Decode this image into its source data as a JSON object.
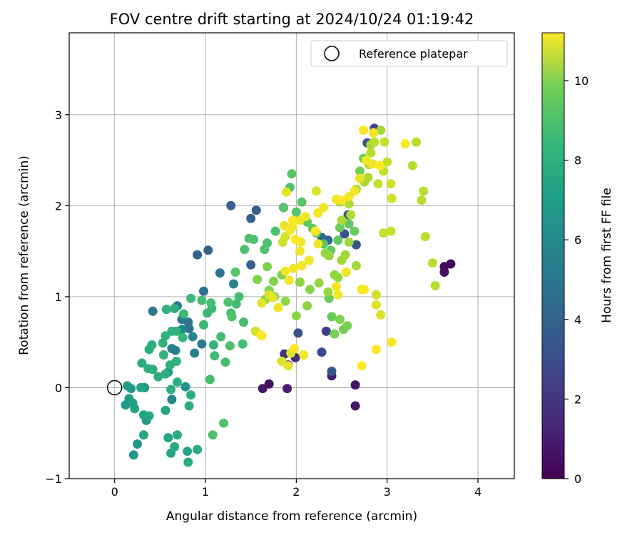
{
  "chart_data": {
    "type": "scatter",
    "title": "FOV centre drift starting at 2024/10/24 01:19:42",
    "xlabel": "Angular distance from reference (arcmin)",
    "ylabel": "Rotation from reference (arcmin)",
    "xlim": [
      -0.5,
      4.4
    ],
    "ylim": [
      -1.0,
      3.9
    ],
    "xticks": [
      0,
      1,
      2,
      3,
      4
    ],
    "yticks": [
      -1,
      0,
      1,
      2,
      3
    ],
    "xtick_labels": [
      "0",
      "1",
      "2",
      "3",
      "4"
    ],
    "ytick_labels": [
      "−1",
      "0",
      "1",
      "2",
      "3"
    ],
    "grid": true,
    "colormap": "viridis",
    "colorbar": {
      "label": "Hours from first FF file",
      "range": [
        0,
        11.2
      ],
      "ticks": [
        0,
        2,
        4,
        6,
        8,
        10
      ],
      "tick_labels": [
        "0",
        "2",
        "4",
        "6",
        "8",
        "10"
      ]
    },
    "legend": {
      "placement": "top-right",
      "entries": [
        {
          "label": "Reference platepar",
          "marker": "open-circle"
        }
      ]
    },
    "reference_point": {
      "x": 0,
      "y": 0
    },
    "points": [
      [
        3.7,
        1.36,
        0.2
      ],
      [
        3.63,
        1.33,
        0.3
      ],
      [
        3.63,
        1.27,
        0.4
      ],
      [
        2.65,
        0.03,
        0.6
      ],
      [
        2.65,
        -0.2,
        0.7
      ],
      [
        2.39,
        0.13,
        1.0
      ],
      [
        1.7,
        0.04,
        0.5
      ],
      [
        1.63,
        -0.01,
        0.7
      ],
      [
        1.9,
        -0.01,
        0.9
      ],
      [
        1.91,
        0.25,
        1.2
      ],
      [
        1.87,
        0.37,
        1.5
      ],
      [
        1.99,
        0.33,
        1.4
      ],
      [
        2.33,
        0.62,
        2.1
      ],
      [
        2.28,
        0.39,
        2.5
      ],
      [
        2.02,
        0.6,
        2.8
      ],
      [
        2.39,
        0.18,
        3.0
      ],
      [
        2.86,
        2.85,
        2.4
      ],
      [
        2.78,
        2.69,
        2.8
      ],
      [
        2.53,
        1.69,
        3.0
      ],
      [
        2.66,
        1.57,
        3.1
      ],
      [
        1.5,
        1.86,
        3.4
      ],
      [
        1.56,
        1.95,
        3.3
      ],
      [
        1.28,
        2.0,
        3.5
      ],
      [
        1.03,
        1.51,
        3.5
      ],
      [
        0.91,
        1.46,
        3.5
      ],
      [
        2.28,
        1.65,
        3.9
      ],
      [
        2.35,
        1.62,
        3.6
      ],
      [
        2.57,
        1.9,
        3.2
      ],
      [
        1.86,
        1.98,
        3.4
      ],
      [
        1.5,
        1.35,
        3.4
      ],
      [
        0.98,
        1.06,
        4.0
      ],
      [
        1.16,
        1.26,
        4.2
      ],
      [
        0.82,
        0.65,
        4.2
      ],
      [
        0.81,
        0.72,
        4.4
      ],
      [
        0.74,
        0.75,
        4.6
      ],
      [
        0.69,
        0.9,
        4.4
      ],
      [
        0.96,
        0.48,
        4.6
      ],
      [
        0.88,
        0.38,
        4.8
      ],
      [
        0.67,
        0.41,
        4.8
      ],
      [
        0.63,
        0.43,
        5.0
      ],
      [
        0.42,
        0.84,
        4.6
      ],
      [
        0.63,
        -0.13,
        5.2
      ],
      [
        0.74,
        0.64,
        5.2
      ],
      [
        0.86,
        0.56,
        5.2
      ],
      [
        1.31,
        1.14,
        5.0
      ],
      [
        0.78,
        0.01,
        5.6
      ],
      [
        0.59,
        0.17,
        5.8
      ],
      [
        0.21,
        -0.74,
        6.0
      ],
      [
        0.25,
        -0.62,
        6.0
      ],
      [
        0.35,
        -0.36,
        6.0
      ],
      [
        0.33,
        0.0,
        6.0
      ],
      [
        0.16,
        -0.12,
        6.2
      ],
      [
        0.12,
        -0.19,
        6.0
      ],
      [
        0.18,
        -0.01,
        6.0
      ],
      [
        0.14,
        0.02,
        6.2
      ],
      [
        0.2,
        -0.17,
        6.4
      ],
      [
        0.22,
        -0.23,
        6.4
      ],
      [
        0.29,
        0.0,
        6.4
      ],
      [
        0.32,
        -0.3,
        6.6
      ],
      [
        0.38,
        -0.31,
        6.6
      ],
      [
        0.32,
        -0.52,
        6.6
      ],
      [
        0.56,
        -0.25,
        6.6
      ],
      [
        0.59,
        -0.55,
        6.6
      ],
      [
        0.62,
        -0.72,
        6.6
      ],
      [
        0.66,
        -0.65,
        6.8
      ],
      [
        0.69,
        -0.52,
        6.8
      ],
      [
        0.8,
        -0.7,
        6.6
      ],
      [
        0.81,
        -0.82,
        6.8
      ],
      [
        0.91,
        -0.68,
        6.8
      ],
      [
        0.82,
        -0.2,
        6.8
      ],
      [
        0.84,
        -0.08,
        7.0
      ],
      [
        0.62,
        -0.02,
        7.0
      ],
      [
        0.69,
        0.06,
        7.0
      ],
      [
        0.3,
        0.27,
        6.8
      ],
      [
        0.37,
        0.21,
        7.0
      ],
      [
        0.42,
        0.2,
        7.0
      ],
      [
        0.48,
        0.12,
        7.0
      ],
      [
        0.56,
        0.15,
        7.0
      ],
      [
        0.61,
        0.25,
        7.2
      ],
      [
        0.68,
        0.29,
        7.2
      ],
      [
        0.54,
        0.36,
        7.2
      ],
      [
        0.38,
        0.42,
        7.0
      ],
      [
        0.41,
        0.47,
        7.0
      ],
      [
        0.53,
        0.49,
        7.2
      ],
      [
        0.56,
        0.57,
        7.2
      ],
      [
        0.63,
        0.62,
        7.2
      ],
      [
        0.68,
        0.62,
        7.2
      ],
      [
        0.75,
        0.55,
        7.4
      ],
      [
        0.57,
        0.86,
        7.2
      ],
      [
        0.66,
        0.87,
        7.0
      ],
      [
        0.76,
        0.81,
        7.6
      ],
      [
        0.84,
        0.98,
        7.6
      ],
      [
        0.96,
        0.96,
        7.8
      ],
      [
        0.98,
        0.69,
        7.6
      ],
      [
        1.02,
        0.82,
        7.6
      ],
      [
        1.06,
        0.93,
        7.8
      ],
      [
        1.07,
        0.87,
        7.6
      ],
      [
        1.09,
        0.47,
        7.4
      ],
      [
        1.1,
        0.35,
        7.6
      ],
      [
        1.05,
        0.09,
        7.8
      ],
      [
        1.08,
        -0.52,
        8.0
      ],
      [
        1.2,
        -0.39,
        8.0
      ],
      [
        1.22,
        0.28,
        7.8
      ],
      [
        1.17,
        0.56,
        7.8
      ],
      [
        1.28,
        0.82,
        7.8
      ],
      [
        1.34,
        0.92,
        7.8
      ],
      [
        1.37,
        1.0,
        7.8
      ],
      [
        1.42,
        0.72,
        7.8
      ],
      [
        1.41,
        0.48,
        7.8
      ],
      [
        1.27,
        0.46,
        8.0
      ],
      [
        1.29,
        0.78,
        8.0
      ],
      [
        1.25,
        0.94,
        8.0
      ],
      [
        1.33,
        1.27,
        8.2
      ],
      [
        1.48,
        1.64,
        8.0
      ],
      [
        1.53,
        1.63,
        8.0
      ],
      [
        1.43,
        1.52,
        8.0
      ],
      [
        1.65,
        1.52,
        8.0
      ],
      [
        1.68,
        1.59,
        8.0
      ],
      [
        1.77,
        1.72,
        8.0
      ],
      [
        1.86,
        1.98,
        8.2
      ],
      [
        1.95,
        2.35,
        8.2
      ],
      [
        1.93,
        2.2,
        8.0
      ],
      [
        2.06,
        2.04,
        8.2
      ],
      [
        2.0,
        1.93,
        8.2
      ],
      [
        2.12,
        1.82,
        8.4
      ],
      [
        2.18,
        1.75,
        8.4
      ],
      [
        2.22,
        1.7,
        8.4
      ],
      [
        2.3,
        1.58,
        8.2
      ],
      [
        2.38,
        1.51,
        8.4
      ],
      [
        2.46,
        1.62,
        8.4
      ],
      [
        2.48,
        1.76,
        8.6
      ],
      [
        2.58,
        1.8,
        8.4
      ],
      [
        2.64,
        1.72,
        8.6
      ],
      [
        2.74,
        2.52,
        8.6
      ],
      [
        2.7,
        2.38,
        8.8
      ],
      [
        2.36,
        0.98,
        8.6
      ],
      [
        2.39,
        0.78,
        8.6
      ],
      [
        2.42,
        0.59,
        8.8
      ],
      [
        2.52,
        0.64,
        8.8
      ],
      [
        2.56,
        0.68,
        8.8
      ],
      [
        2.48,
        0.75,
        9.0
      ],
      [
        1.76,
        1.0,
        9.0
      ],
      [
        1.7,
        1.07,
        9.0
      ],
      [
        1.75,
        1.17,
        9.0
      ],
      [
        1.84,
        1.24,
        9.0
      ],
      [
        1.68,
        1.33,
        9.0
      ],
      [
        1.57,
        1.19,
        9.0
      ],
      [
        1.66,
        0.97,
        9.2
      ],
      [
        1.88,
        0.95,
        9.2
      ],
      [
        2.12,
        0.9,
        9.2
      ],
      [
        2.0,
        0.79,
        9.2
      ],
      [
        2.15,
        1.08,
        9.2
      ],
      [
        2.04,
        1.16,
        9.2
      ],
      [
        2.25,
        1.15,
        9.4
      ],
      [
        2.35,
        1.05,
        9.4
      ],
      [
        2.42,
        1.24,
        9.4
      ],
      [
        2.46,
        1.21,
        9.4
      ],
      [
        2.32,
        1.48,
        9.4
      ],
      [
        2.36,
        1.45,
        9.4
      ],
      [
        2.5,
        1.4,
        9.6
      ],
      [
        2.54,
        1.46,
        9.6
      ],
      [
        2.66,
        1.34,
        9.6
      ],
      [
        2.58,
        1.6,
        9.6
      ],
      [
        2.5,
        1.84,
        9.8
      ],
      [
        2.6,
        1.9,
        9.8
      ],
      [
        2.58,
        2.02,
        9.8
      ],
      [
        2.48,
        2.04,
        9.8
      ],
      [
        2.66,
        2.18,
        9.8
      ],
      [
        2.75,
        2.26,
        9.8
      ],
      [
        2.79,
        2.31,
        9.8
      ],
      [
        2.8,
        2.45,
        10.0
      ],
      [
        2.82,
        2.58,
        10.0
      ],
      [
        2.86,
        2.7,
        10.0
      ],
      [
        2.97,
        2.7,
        10.2
      ],
      [
        3.0,
        2.48,
        10.2
      ],
      [
        2.96,
        2.38,
        10.2
      ],
      [
        2.9,
        2.24,
        10.2
      ],
      [
        3.04,
        2.24,
        10.4
      ],
      [
        3.05,
        2.08,
        10.4
      ],
      [
        2.96,
        1.7,
        10.2
      ],
      [
        3.04,
        1.72,
        10.2
      ],
      [
        3.28,
        2.44,
        10.0
      ],
      [
        3.32,
        2.7,
        10.0
      ],
      [
        3.38,
        2.06,
        10.0
      ],
      [
        3.4,
        2.16,
        10.0
      ],
      [
        3.42,
        1.66,
        10.0
      ],
      [
        3.5,
        1.37,
        10.0
      ],
      [
        3.53,
        1.12,
        10.0
      ],
      [
        2.88,
        1.02,
        10.4
      ],
      [
        2.88,
        0.91,
        10.6
      ],
      [
        2.93,
        0.8,
        10.6
      ],
      [
        2.82,
        2.67,
        9.6
      ],
      [
        2.93,
        2.83,
        9.6
      ],
      [
        3.2,
        2.68,
        11.2
      ],
      [
        2.85,
        2.8,
        11.0
      ],
      [
        2.74,
        2.83,
        11.2
      ],
      [
        2.84,
        2.46,
        11.0
      ],
      [
        2.92,
        2.44,
        11.2
      ],
      [
        2.77,
        2.5,
        11.0
      ],
      [
        2.7,
        2.3,
        10.8
      ],
      [
        2.64,
        2.16,
        11.0
      ],
      [
        2.58,
        2.1,
        11.0
      ],
      [
        2.44,
        2.07,
        11.0
      ],
      [
        2.5,
        2.06,
        11.2
      ],
      [
        2.3,
        1.98,
        11.0
      ],
      [
        2.24,
        1.92,
        11.0
      ],
      [
        2.1,
        1.88,
        11.0
      ],
      [
        2.04,
        1.84,
        11.0
      ],
      [
        1.96,
        1.84,
        11.2
      ],
      [
        1.96,
        1.77,
        11.0
      ],
      [
        1.93,
        1.73,
        11.0
      ],
      [
        1.99,
        1.63,
        11.2
      ],
      [
        2.05,
        1.6,
        11.0
      ],
      [
        2.24,
        1.58,
        11.0
      ],
      [
        2.21,
        1.72,
        11.2
      ],
      [
        2.04,
        1.5,
        11.0
      ],
      [
        2.14,
        1.4,
        11.0
      ],
      [
        2.06,
        1.34,
        11.0
      ],
      [
        1.97,
        1.31,
        11.0
      ],
      [
        1.88,
        1.28,
        11.0
      ],
      [
        1.92,
        1.18,
        11.0
      ],
      [
        2.44,
        1.11,
        11.0
      ],
      [
        2.46,
        1.02,
        11.0
      ],
      [
        2.55,
        1.27,
        11.0
      ],
      [
        2.72,
        1.08,
        11.0
      ],
      [
        2.75,
        1.08,
        11.2
      ],
      [
        3.05,
        0.5,
        11.2
      ],
      [
        2.88,
        0.42,
        11.2
      ],
      [
        2.72,
        0.24,
        11.2
      ],
      [
        1.94,
        0.38,
        10.6
      ],
      [
        1.98,
        0.43,
        11.2
      ],
      [
        2.08,
        0.36,
        11.0
      ],
      [
        1.91,
        0.24,
        10.8
      ],
      [
        1.84,
        0.29,
        10.6
      ],
      [
        1.62,
        0.57,
        11.2
      ],
      [
        1.61,
        0.58,
        11.0
      ],
      [
        1.55,
        0.62,
        10.4
      ],
      [
        1.62,
        0.93,
        10.8
      ],
      [
        1.8,
        0.88,
        11.0
      ],
      [
        1.74,
        0.99,
        10.8
      ],
      [
        1.7,
        1.02,
        10.6
      ],
      [
        1.85,
        1.6,
        10.4
      ],
      [
        1.88,
        1.66,
        10.4
      ],
      [
        1.87,
        1.78,
        10.8
      ],
      [
        1.89,
        2.15,
        10.8
      ],
      [
        2.22,
        2.16,
        10.6
      ],
      [
        2.74,
        2.83,
        10.6
      ]
    ]
  }
}
